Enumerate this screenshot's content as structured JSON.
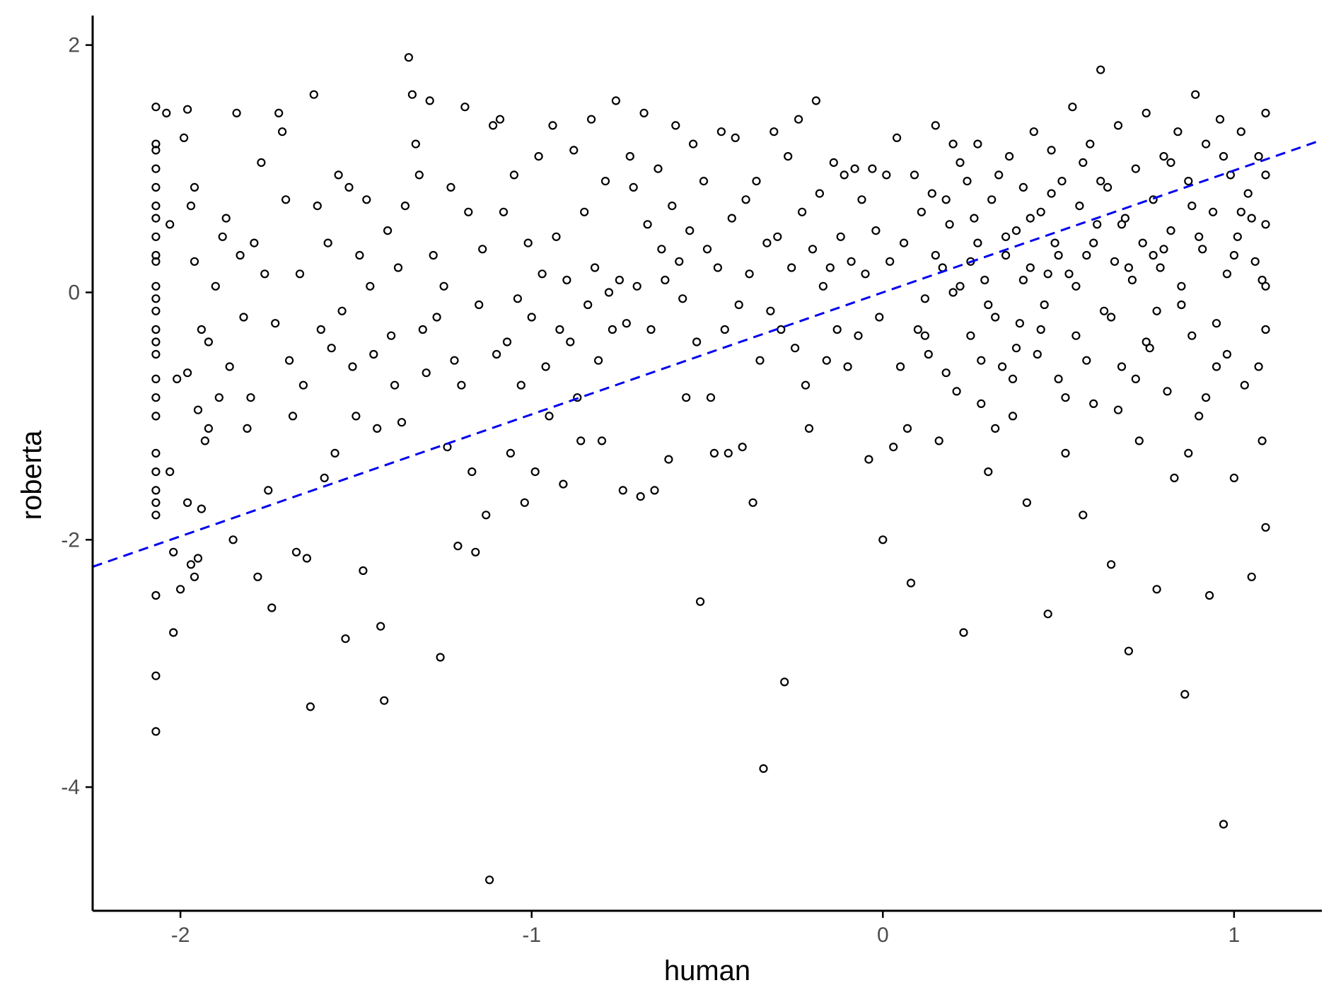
{
  "chart_data": {
    "type": "scatter",
    "xlabel": "human",
    "ylabel": "roberta",
    "xlim": [
      -2.25,
      1.25
    ],
    "ylim": [
      -5.0,
      2.25
    ],
    "x_ticks": [
      -2,
      -1,
      0,
      1
    ],
    "x_tick_labels": [
      "-2",
      "-1",
      "0",
      "1"
    ],
    "y_ticks": [
      -4,
      -2,
      0,
      2
    ],
    "y_tick_labels": [
      "-4",
      "-2",
      "0",
      "2"
    ],
    "grid": false,
    "legend": "none",
    "trend_line": {
      "intercept": 0.0,
      "slope": 0.986,
      "style": "dashed",
      "color": "#0000ee"
    },
    "point_style": {
      "shape": "open-circle",
      "color": "#000000"
    },
    "points": [
      [
        -2.07,
        1.5
      ],
      [
        -2.07,
        1.2
      ],
      [
        -2.07,
        1.15
      ],
      [
        -2.07,
        1.0
      ],
      [
        -2.07,
        0.85
      ],
      [
        -2.07,
        0.7
      ],
      [
        -2.07,
        0.6
      ],
      [
        -2.07,
        0.45
      ],
      [
        -2.07,
        0.3
      ],
      [
        -2.07,
        0.25
      ],
      [
        -2.07,
        0.05
      ],
      [
        -2.07,
        -0.05
      ],
      [
        -2.07,
        -0.15
      ],
      [
        -2.07,
        -0.3
      ],
      [
        -2.07,
        -0.4
      ],
      [
        -2.07,
        -0.5
      ],
      [
        -2.07,
        -0.7
      ],
      [
        -2.07,
        -0.85
      ],
      [
        -2.07,
        -1.0
      ],
      [
        -2.07,
        -1.3
      ],
      [
        -2.07,
        -1.45
      ],
      [
        -2.07,
        -1.6
      ],
      [
        -2.07,
        -1.7
      ],
      [
        -2.07,
        -1.8
      ],
      [
        -2.07,
        -2.45
      ],
      [
        -2.07,
        -3.1
      ],
      [
        -2.07,
        -3.55
      ],
      [
        -2.04,
        1.45
      ],
      [
        -2.03,
        0.55
      ],
      [
        -2.03,
        -1.45
      ],
      [
        -2.02,
        -2.1
      ],
      [
        -2.02,
        -2.75
      ],
      [
        -2.01,
        -0.7
      ],
      [
        -2.0,
        -2.4
      ],
      [
        -1.99,
        1.25
      ],
      [
        -1.98,
        1.48
      ],
      [
        -1.98,
        -0.65
      ],
      [
        -1.98,
        -1.7
      ],
      [
        -1.97,
        0.7
      ],
      [
        -1.97,
        -2.2
      ],
      [
        -1.96,
        0.85
      ],
      [
        -1.96,
        0.25
      ],
      [
        -1.96,
        -2.3
      ],
      [
        -1.95,
        -0.95
      ],
      [
        -1.95,
        -2.15
      ],
      [
        -1.94,
        -0.3
      ],
      [
        -1.94,
        -1.75
      ],
      [
        -1.93,
        -1.2
      ],
      [
        -1.92,
        -0.4
      ],
      [
        -1.92,
        -1.1
      ],
      [
        -1.9,
        0.05
      ],
      [
        -1.89,
        -0.85
      ],
      [
        -1.88,
        0.45
      ],
      [
        -1.87,
        0.6
      ],
      [
        -1.86,
        -0.6
      ],
      [
        -1.85,
        -2.0
      ],
      [
        -1.84,
        1.45
      ],
      [
        -1.83,
        0.3
      ],
      [
        -1.82,
        -0.2
      ],
      [
        -1.81,
        -1.1
      ],
      [
        -1.8,
        -0.85
      ],
      [
        -1.79,
        0.4
      ],
      [
        -1.78,
        -2.3
      ],
      [
        -1.77,
        1.05
      ],
      [
        -1.76,
        0.15
      ],
      [
        -1.75,
        -1.6
      ],
      [
        -1.74,
        -2.55
      ],
      [
        -1.73,
        -0.25
      ],
      [
        -1.72,
        1.45
      ],
      [
        -1.71,
        1.3
      ],
      [
        -1.7,
        0.75
      ],
      [
        -1.69,
        -0.55
      ],
      [
        -1.68,
        -1.0
      ],
      [
        -1.67,
        -2.1
      ],
      [
        -1.66,
        0.15
      ],
      [
        -1.65,
        -0.75
      ],
      [
        -1.64,
        -2.15
      ],
      [
        -1.63,
        -3.35
      ],
      [
        -1.62,
        1.6
      ],
      [
        -1.61,
        0.7
      ],
      [
        -1.6,
        -0.3
      ],
      [
        -1.59,
        -1.5
      ],
      [
        -1.58,
        0.4
      ],
      [
        -1.57,
        -0.45
      ],
      [
        -1.56,
        -1.3
      ],
      [
        -1.55,
        0.95
      ],
      [
        -1.54,
        -0.15
      ],
      [
        -1.53,
        -2.8
      ],
      [
        -1.52,
        0.85
      ],
      [
        -1.51,
        -0.6
      ],
      [
        -1.5,
        -1.0
      ],
      [
        -1.49,
        0.3
      ],
      [
        -1.48,
        -2.25
      ],
      [
        -1.47,
        0.75
      ],
      [
        -1.46,
        0.05
      ],
      [
        -1.45,
        -0.5
      ],
      [
        -1.44,
        -1.1
      ],
      [
        -1.43,
        -2.7
      ],
      [
        -1.42,
        -3.3
      ],
      [
        -1.41,
        0.5
      ],
      [
        -1.4,
        -0.35
      ],
      [
        -1.39,
        -0.75
      ],
      [
        -1.38,
        0.2
      ],
      [
        -1.37,
        -1.05
      ],
      [
        -1.36,
        0.7
      ],
      [
        -1.35,
        1.9
      ],
      [
        -1.34,
        1.6
      ],
      [
        -1.33,
        1.2
      ],
      [
        -1.32,
        0.95
      ],
      [
        -1.31,
        -0.3
      ],
      [
        -1.3,
        -0.65
      ],
      [
        -1.29,
        1.55
      ],
      [
        -1.28,
        0.3
      ],
      [
        -1.27,
        -0.2
      ],
      [
        -1.26,
        -2.95
      ],
      [
        -1.25,
        0.05
      ],
      [
        -1.24,
        -1.25
      ],
      [
        -1.23,
        0.85
      ],
      [
        -1.22,
        -0.55
      ],
      [
        -1.21,
        -2.05
      ],
      [
        -1.2,
        -0.75
      ],
      [
        -1.19,
        1.5
      ],
      [
        -1.18,
        0.65
      ],
      [
        -1.17,
        -1.45
      ],
      [
        -1.16,
        -2.1
      ],
      [
        -1.15,
        -0.1
      ],
      [
        -1.14,
        0.35
      ],
      [
        -1.13,
        -1.8
      ],
      [
        -1.12,
        -4.75
      ],
      [
        -1.11,
        1.35
      ],
      [
        -1.1,
        -0.5
      ],
      [
        -1.09,
        1.4
      ],
      [
        -1.08,
        0.65
      ],
      [
        -1.07,
        -0.4
      ],
      [
        -1.06,
        -1.3
      ],
      [
        -1.05,
        0.95
      ],
      [
        -1.04,
        -0.05
      ],
      [
        -1.03,
        -0.75
      ],
      [
        -1.02,
        -1.7
      ],
      [
        -1.01,
        0.4
      ],
      [
        -1.0,
        -0.2
      ],
      [
        -0.99,
        -1.45
      ],
      [
        -0.98,
        1.1
      ],
      [
        -0.97,
        0.15
      ],
      [
        -0.96,
        -0.6
      ],
      [
        -0.95,
        -1.0
      ],
      [
        -0.94,
        1.35
      ],
      [
        -0.93,
        0.45
      ],
      [
        -0.92,
        -0.3
      ],
      [
        -0.91,
        -1.55
      ],
      [
        -0.9,
        0.1
      ],
      [
        -0.89,
        -0.4
      ],
      [
        -0.88,
        1.15
      ],
      [
        -0.87,
        -0.85
      ],
      [
        -0.86,
        -1.2
      ],
      [
        -0.85,
        0.65
      ],
      [
        -0.84,
        -0.1
      ],
      [
        -0.83,
        1.4
      ],
      [
        -0.82,
        0.2
      ],
      [
        -0.81,
        -0.55
      ],
      [
        -0.8,
        -1.2
      ],
      [
        -0.79,
        0.9
      ],
      [
        -0.78,
        0.0
      ],
      [
        -0.77,
        -0.3
      ],
      [
        -0.76,
        1.55
      ],
      [
        -0.75,
        0.1
      ],
      [
        -0.74,
        -1.6
      ],
      [
        -0.73,
        -0.25
      ],
      [
        -0.72,
        1.1
      ],
      [
        -0.71,
        0.85
      ],
      [
        -0.7,
        0.05
      ],
      [
        -0.69,
        -1.65
      ],
      [
        -0.68,
        1.45
      ],
      [
        -0.67,
        0.55
      ],
      [
        -0.66,
        -0.3
      ],
      [
        -0.65,
        -1.6
      ],
      [
        -0.64,
        1.0
      ],
      [
        -0.63,
        0.35
      ],
      [
        -0.62,
        0.1
      ],
      [
        -0.61,
        -1.35
      ],
      [
        -0.6,
        0.7
      ],
      [
        -0.59,
        1.35
      ],
      [
        -0.58,
        0.25
      ],
      [
        -0.57,
        -0.05
      ],
      [
        -0.56,
        -0.85
      ],
      [
        -0.55,
        0.5
      ],
      [
        -0.54,
        1.2
      ],
      [
        -0.53,
        -0.4
      ],
      [
        -0.52,
        -2.5
      ],
      [
        -0.51,
        0.9
      ],
      [
        -0.5,
        0.35
      ],
      [
        -0.49,
        -0.85
      ],
      [
        -0.48,
        -1.3
      ],
      [
        -0.47,
        0.2
      ],
      [
        -0.46,
        1.3
      ],
      [
        -0.45,
        -0.3
      ],
      [
        -0.44,
        -1.3
      ],
      [
        -0.43,
        0.6
      ],
      [
        -0.42,
        1.25
      ],
      [
        -0.41,
        -0.1
      ],
      [
        -0.4,
        -1.25
      ],
      [
        -0.39,
        0.75
      ],
      [
        -0.38,
        0.15
      ],
      [
        -0.37,
        -1.7
      ],
      [
        -0.36,
        0.9
      ],
      [
        -0.35,
        -0.55
      ],
      [
        -0.34,
        -3.85
      ],
      [
        -0.33,
        0.4
      ],
      [
        -0.32,
        -0.15
      ],
      [
        -0.31,
        1.3
      ],
      [
        -0.3,
        0.45
      ],
      [
        -0.29,
        -0.3
      ],
      [
        -0.28,
        -3.15
      ],
      [
        -0.27,
        1.1
      ],
      [
        -0.26,
        0.2
      ],
      [
        -0.25,
        -0.45
      ],
      [
        -0.24,
        1.4
      ],
      [
        -0.23,
        0.65
      ],
      [
        -0.22,
        -0.75
      ],
      [
        -0.21,
        -1.1
      ],
      [
        -0.2,
        0.35
      ],
      [
        -0.19,
        1.55
      ],
      [
        -0.18,
        0.8
      ],
      [
        -0.17,
        0.05
      ],
      [
        -0.16,
        -0.55
      ],
      [
        -0.15,
        0.2
      ],
      [
        -0.14,
        1.05
      ],
      [
        -0.13,
        -0.3
      ],
      [
        -0.12,
        0.45
      ],
      [
        -0.11,
        0.95
      ],
      [
        -0.1,
        -0.6
      ],
      [
        -0.09,
        0.25
      ],
      [
        -0.08,
        1.0
      ],
      [
        -0.07,
        -0.35
      ],
      [
        -0.06,
        0.75
      ],
      [
        -0.05,
        0.15
      ],
      [
        -0.04,
        -1.35
      ],
      [
        -0.03,
        1.0
      ],
      [
        -0.02,
        0.5
      ],
      [
        -0.01,
        -0.2
      ],
      [
        0.0,
        -2.0
      ],
      [
        0.01,
        0.95
      ],
      [
        0.02,
        0.25
      ],
      [
        0.03,
        -1.25
      ],
      [
        0.04,
        1.25
      ],
      [
        0.05,
        -0.6
      ],
      [
        0.06,
        0.4
      ],
      [
        0.07,
        -1.1
      ],
      [
        0.08,
        -2.35
      ],
      [
        0.09,
        0.95
      ],
      [
        0.1,
        -0.3
      ],
      [
        0.11,
        0.65
      ],
      [
        0.12,
        -0.05
      ],
      [
        0.13,
        -0.5
      ],
      [
        0.14,
        0.8
      ],
      [
        0.15,
        1.35
      ],
      [
        0.16,
        -1.2
      ],
      [
        0.17,
        0.2
      ],
      [
        0.18,
        -0.65
      ],
      [
        0.19,
        0.55
      ],
      [
        0.2,
        1.2
      ],
      [
        0.21,
        -0.8
      ],
      [
        0.22,
        0.05
      ],
      [
        0.23,
        -2.75
      ],
      [
        0.24,
        0.9
      ],
      [
        0.25,
        -0.35
      ],
      [
        0.26,
        0.6
      ],
      [
        0.27,
        1.2
      ],
      [
        0.28,
        -0.55
      ],
      [
        0.29,
        0.1
      ],
      [
        0.3,
        -1.45
      ],
      [
        0.31,
        0.75
      ],
      [
        0.32,
        -0.2
      ],
      [
        0.33,
        0.95
      ],
      [
        0.34,
        -0.6
      ],
      [
        0.35,
        0.3
      ],
      [
        0.36,
        1.1
      ],
      [
        0.37,
        -1.0
      ],
      [
        0.38,
        0.5
      ],
      [
        0.39,
        -0.25
      ],
      [
        0.4,
        0.85
      ],
      [
        0.41,
        -1.7
      ],
      [
        0.42,
        0.2
      ],
      [
        0.43,
        1.3
      ],
      [
        0.44,
        -0.5
      ],
      [
        0.45,
        0.65
      ],
      [
        0.46,
        -0.1
      ],
      [
        0.47,
        -2.6
      ],
      [
        0.48,
        1.15
      ],
      [
        0.49,
        0.4
      ],
      [
        0.5,
        -0.7
      ],
      [
        0.51,
        0.9
      ],
      [
        0.52,
        -1.3
      ],
      [
        0.53,
        0.15
      ],
      [
        0.54,
        1.5
      ],
      [
        0.55,
        -0.35
      ],
      [
        0.56,
        0.7
      ],
      [
        0.57,
        -1.8
      ],
      [
        0.58,
        0.3
      ],
      [
        0.59,
        1.2
      ],
      [
        0.6,
        -0.9
      ],
      [
        0.61,
        0.55
      ],
      [
        0.62,
        1.8
      ],
      [
        0.63,
        -0.15
      ],
      [
        0.64,
        0.85
      ],
      [
        0.65,
        -2.2
      ],
      [
        0.66,
        0.25
      ],
      [
        0.67,
        1.35
      ],
      [
        0.68,
        -0.6
      ],
      [
        0.69,
        0.6
      ],
      [
        0.7,
        -2.9
      ],
      [
        0.71,
        0.1
      ],
      [
        0.72,
        1.0
      ],
      [
        0.73,
        -1.2
      ],
      [
        0.74,
        0.4
      ],
      [
        0.75,
        1.45
      ],
      [
        0.76,
        -0.45
      ],
      [
        0.77,
        0.75
      ],
      [
        0.78,
        -2.4
      ],
      [
        0.79,
        0.2
      ],
      [
        0.8,
        1.1
      ],
      [
        0.81,
        -0.8
      ],
      [
        0.82,
        0.5
      ],
      [
        0.83,
        -1.5
      ],
      [
        0.84,
        1.3
      ],
      [
        0.85,
        0.05
      ],
      [
        0.86,
        -3.25
      ],
      [
        0.87,
        0.9
      ],
      [
        0.88,
        -0.35
      ],
      [
        0.89,
        1.6
      ],
      [
        0.9,
        -1.0
      ],
      [
        0.91,
        0.35
      ],
      [
        0.92,
        1.2
      ],
      [
        0.93,
        -2.45
      ],
      [
        0.94,
        0.65
      ],
      [
        0.95,
        -0.6
      ],
      [
        0.96,
        1.4
      ],
      [
        0.97,
        -4.3
      ],
      [
        0.98,
        0.15
      ],
      [
        0.99,
        0.95
      ],
      [
        1.0,
        -1.5
      ],
      [
        1.01,
        0.45
      ],
      [
        1.02,
        1.3
      ],
      [
        1.03,
        -0.75
      ],
      [
        1.04,
        0.8
      ],
      [
        1.05,
        -2.3
      ],
      [
        1.06,
        0.25
      ],
      [
        1.07,
        1.1
      ],
      [
        1.08,
        -1.2
      ],
      [
        1.09,
        0.55
      ],
      [
        1.09,
        1.45
      ],
      [
        1.09,
        -0.3
      ],
      [
        1.09,
        -1.9
      ],
      [
        1.09,
        0.05
      ],
      [
        1.09,
        0.95
      ],
      [
        0.15,
        0.3
      ],
      [
        0.2,
        0.0
      ],
      [
        0.25,
        0.25
      ],
      [
        0.3,
        -0.1
      ],
      [
        0.35,
        0.45
      ],
      [
        0.4,
        0.1
      ],
      [
        0.45,
        -0.3
      ],
      [
        0.5,
        0.3
      ],
      [
        0.55,
        0.05
      ],
      [
        0.6,
        0.4
      ],
      [
        0.65,
        -0.2
      ],
      [
        0.7,
        0.2
      ],
      [
        0.75,
        -0.4
      ],
      [
        0.8,
        0.35
      ],
      [
        0.85,
        -0.1
      ],
      [
        0.9,
        0.45
      ],
      [
        0.95,
        -0.25
      ],
      [
        1.0,
        0.3
      ],
      [
        1.05,
        0.6
      ],
      [
        0.18,
        0.75
      ],
      [
        0.28,
        -0.9
      ],
      [
        0.38,
        -0.45
      ],
      [
        0.48,
        0.8
      ],
      [
        0.58,
        -0.55
      ],
      [
        0.68,
        0.55
      ],
      [
        0.78,
        -0.15
      ],
      [
        0.88,
        0.7
      ],
      [
        0.98,
        -0.5
      ],
      [
        1.08,
        0.1
      ],
      [
        0.22,
        1.05
      ],
      [
        0.32,
        -1.1
      ],
      [
        0.42,
        0.6
      ],
      [
        0.52,
        -0.85
      ],
      [
        0.62,
        0.9
      ],
      [
        0.72,
        -0.7
      ],
      [
        0.82,
        1.05
      ],
      [
        0.92,
        -0.85
      ],
      [
        1.02,
        0.65
      ],
      [
        0.12,
        -0.35
      ],
      [
        0.27,
        0.4
      ],
      [
        0.37,
        -0.7
      ],
      [
        0.47,
        0.15
      ],
      [
        0.57,
        1.05
      ],
      [
        0.67,
        -0.95
      ],
      [
        0.77,
        0.3
      ],
      [
        0.87,
        -1.3
      ],
      [
        0.97,
        1.1
      ],
      [
        1.07,
        -0.6
      ]
    ]
  }
}
